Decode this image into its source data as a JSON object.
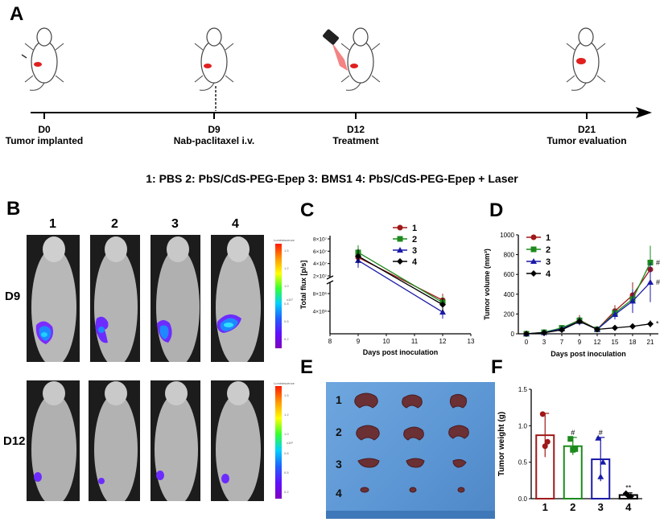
{
  "panels": {
    "A": "A",
    "B": "B",
    "C": "C",
    "D": "D",
    "E": "E",
    "F": "F"
  },
  "timeline": {
    "events": [
      {
        "day": "D0",
        "desc": "Tumor implanted"
      },
      {
        "day": "D9",
        "desc": "Nab-paclitaxel i.v."
      },
      {
        "day": "D12",
        "desc": "Treatment"
      },
      {
        "day": "D21",
        "desc": "Tumor evaluation"
      }
    ]
  },
  "group_legend": "1: PBS  2: PbS/CdS-PEG-Epep  3: BMS1  4: PbS/CdS-PEG-Epep + Laser",
  "imaging": {
    "columns": [
      "1",
      "2",
      "3",
      "4"
    ],
    "rows": [
      "D9",
      "D12"
    ],
    "colorbar_label": "Luminescence",
    "colorbar_scale_d9": "x10⁷",
    "colorbar_scale_d12": "x10⁶",
    "colorbar_ticks": [
      "1.5",
      "1.2",
      "1.0",
      "0.8",
      "0.5",
      "0.2"
    ]
  },
  "chart_data": [
    {
      "id": "C",
      "type": "line",
      "xlabel": "Days post inoculation",
      "ylabel": "Total flux [p/s]",
      "x_ticks": [
        "8",
        "9",
        "10",
        "11",
        "12",
        "13"
      ],
      "y_ticks_upper": [
        "8×10⁷",
        "6×10⁷",
        "4×10⁷",
        "2×10⁷"
      ],
      "y_ticks_lower": [
        "8×10⁶",
        "4×10⁶"
      ],
      "xlim": [
        8,
        13
      ],
      "series": [
        {
          "name": "1",
          "color": "#a01818",
          "x": [
            9,
            12
          ],
          "y": [
            50000000,
            6500000
          ]
        },
        {
          "name": "2",
          "color": "#1c8a1c",
          "x": [
            9,
            12
          ],
          "y": [
            58000000,
            6000000
          ]
        },
        {
          "name": "3",
          "color": "#1a1aa8",
          "x": [
            9,
            12
          ],
          "y": [
            45000000,
            3800000
          ]
        },
        {
          "name": "4",
          "color": "#000000",
          "x": [
            9,
            12
          ],
          "y": [
            52000000,
            5500000
          ]
        }
      ]
    },
    {
      "id": "D",
      "type": "line",
      "xlabel": "Days post inoculation",
      "ylabel": "Tumor volume (mm³)",
      "ylim": [
        0,
        1000
      ],
      "y_ticks": [
        "0",
        "200",
        "400",
        "600",
        "800",
        "1000"
      ],
      "categories": [
        "0",
        "3",
        "7",
        "9",
        "12",
        "15",
        "18",
        "21"
      ],
      "series": [
        {
          "name": "1",
          "color": "#a01818",
          "values": [
            0,
            15,
            55,
            140,
            45,
            230,
            390,
            650
          ]
        },
        {
          "name": "2",
          "color": "#1c8a1c",
          "values": [
            0,
            15,
            60,
            135,
            45,
            210,
            350,
            720
          ]
        },
        {
          "name": "3",
          "color": "#1a1aa8",
          "values": [
            0,
            12,
            50,
            125,
            45,
            195,
            330,
            520
          ]
        },
        {
          "name": "4",
          "color": "#000000",
          "values": [
            0,
            10,
            40,
            125,
            45,
            60,
            75,
            100
          ]
        }
      ],
      "annotations": [
        {
          "series": "2",
          "text": "#"
        },
        {
          "series": "3",
          "text": "#"
        },
        {
          "series": "4",
          "text": "*"
        }
      ]
    },
    {
      "id": "F",
      "type": "bar",
      "ylabel": "Tumor weight (g)",
      "ylim": [
        0,
        1.5
      ],
      "y_ticks": [
        "0.0",
        "0.5",
        "1.0",
        "1.5"
      ],
      "categories": [
        "1",
        "2",
        "3",
        "4"
      ],
      "values": [
        0.87,
        0.72,
        0.54,
        0.05
      ],
      "errors": [
        0.3,
        0.12,
        0.3,
        0.03
      ],
      "colors": [
        "#a01818",
        "#1c8a1c",
        "#1a1aa8",
        "#000000"
      ],
      "points": [
        [
          1.16,
          0.72,
          0.78
        ],
        [
          0.82,
          0.67,
          0.68
        ],
        [
          0.83,
          0.3,
          0.5
        ],
        [
          0.07,
          0.04,
          0.03
        ]
      ],
      "annotations": [
        "",
        "#",
        "#",
        "**"
      ]
    }
  ],
  "photo": {
    "rows": [
      "1",
      "2",
      "3",
      "4"
    ]
  }
}
